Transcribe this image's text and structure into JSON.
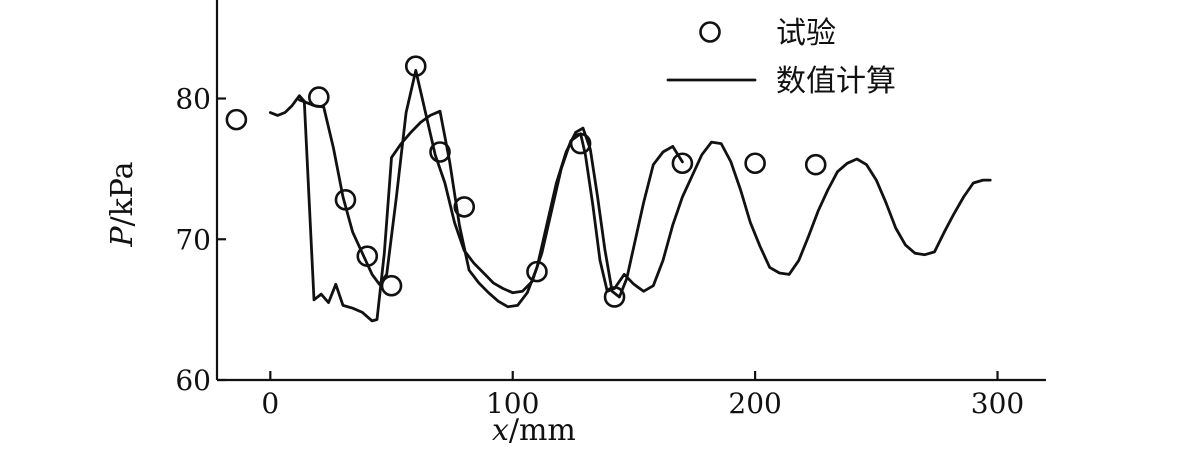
{
  "chart_data": {
    "type": "line",
    "xlabel": {
      "var": "x",
      "unit": "mm"
    },
    "ylabel": {
      "var": "P",
      "unit": "kPa"
    },
    "xlim": [
      -22,
      320
    ],
    "ylim": [
      60,
      87
    ],
    "x_ticks": [
      0,
      100,
      200,
      300
    ],
    "y_ticks": [
      60,
      70,
      80
    ],
    "legend_position": "top-right",
    "legend": [
      {
        "label": "试验",
        "style": "marker-circle"
      },
      {
        "label": "数值计算",
        "style": "line"
      }
    ],
    "series": [
      {
        "name": "试验",
        "style": "marker-circle",
        "points": [
          [
            -14,
            78.5
          ],
          [
            20,
            80.1
          ],
          [
            31,
            72.8
          ],
          [
            40,
            68.8
          ],
          [
            50,
            66.7
          ],
          [
            60,
            82.3
          ],
          [
            70,
            76.2
          ],
          [
            80,
            72.3
          ],
          [
            110,
            67.7
          ],
          [
            128,
            76.8
          ],
          [
            142,
            65.9
          ],
          [
            170,
            75.4
          ],
          [
            200,
            75.4
          ],
          [
            225,
            75.3
          ]
        ]
      },
      {
        "name": "数值计算",
        "style": "line",
        "segments": [
          [
            [
              0,
              79.0
            ],
            [
              3,
              78.8
            ],
            [
              6,
              79.0
            ],
            [
              9,
              79.5
            ],
            [
              12,
              80.2
            ],
            [
              14,
              79.8
            ],
            [
              18,
              65.7
            ],
            [
              21,
              66.1
            ],
            [
              24,
              65.5
            ],
            [
              27,
              66.8
            ],
            [
              30,
              65.3
            ],
            [
              34,
              65.1
            ],
            [
              38,
              64.8
            ],
            [
              42,
              64.2
            ],
            [
              44,
              64.3
            ],
            [
              47,
              69.0
            ],
            [
              50,
              75.8
            ],
            [
              54,
              76.8
            ],
            [
              58,
              77.6
            ],
            [
              62,
              78.3
            ],
            [
              66,
              78.8
            ],
            [
              70,
              79.1
            ],
            [
              74,
              75.5
            ],
            [
              78,
              71.0
            ],
            [
              82,
              67.8
            ],
            [
              86,
              66.9
            ],
            [
              90,
              66.2
            ],
            [
              94,
              65.6
            ],
            [
              98,
              65.2
            ],
            [
              102,
              65.3
            ],
            [
              106,
              66.2
            ],
            [
              110,
              68.0
            ],
            [
              114,
              71.0
            ],
            [
              118,
              74.0
            ],
            [
              122,
              76.2
            ],
            [
              126,
              77.6
            ],
            [
              129,
              77.9
            ],
            [
              132,
              76.4
            ],
            [
              135,
              73.0
            ],
            [
              138,
              69.3
            ],
            [
              141,
              66.3
            ],
            [
              144,
              65.9
            ],
            [
              147,
              67.2
            ],
            [
              150,
              69.5
            ],
            [
              154,
              72.6
            ],
            [
              158,
              75.3
            ],
            [
              162,
              76.2
            ],
            [
              166,
              76.6
            ],
            [
              170,
              75.5
            ]
          ],
          [
            [
              12,
              79.9
            ],
            [
              15,
              79.7
            ],
            [
              18,
              79.5
            ],
            [
              22,
              79.4
            ],
            [
              26,
              76.5
            ],
            [
              30,
              73.0
            ],
            [
              34,
              70.5
            ],
            [
              38,
              69.0
            ],
            [
              42,
              67.5
            ],
            [
              45,
              66.8
            ],
            [
              48,
              67.5
            ],
            [
              52,
              73.0
            ],
            [
              56,
              79.0
            ],
            [
              60,
              82.0
            ],
            [
              64,
              79.0
            ],
            [
              68,
              76.0
            ],
            [
              72,
              74.0
            ],
            [
              76,
              71.2
            ],
            [
              80,
              69.2
            ],
            [
              84,
              68.3
            ],
            [
              88,
              67.6
            ],
            [
              92,
              66.9
            ],
            [
              96,
              66.5
            ],
            [
              100,
              66.2
            ],
            [
              104,
              66.3
            ],
            [
              108,
              67.0
            ],
            [
              112,
              69.0
            ],
            [
              116,
              72.0
            ],
            [
              120,
              75.0
            ],
            [
              124,
              77.0
            ],
            [
              128,
              77.5
            ],
            [
              130,
              76.0
            ],
            [
              133,
              72.5
            ],
            [
              136,
              68.5
            ],
            [
              139,
              66.3
            ],
            [
              142,
              66.5
            ],
            [
              146,
              67.5
            ],
            [
              150,
              66.8
            ],
            [
              154,
              66.3
            ],
            [
              158,
              66.7
            ],
            [
              162,
              68.5
            ],
            [
              166,
              71.0
            ],
            [
              170,
              73.0
            ],
            [
              174,
              74.5
            ],
            [
              178,
              76.0
            ],
            [
              182,
              76.9
            ],
            [
              186,
              76.8
            ],
            [
              190,
              75.5
            ],
            [
              194,
              73.5
            ],
            [
              198,
              71.2
            ],
            [
              202,
              69.5
            ],
            [
              206,
              68.0
            ],
            [
              210,
              67.6
            ],
            [
              214,
              67.5
            ],
            [
              218,
              68.5
            ],
            [
              222,
              70.2
            ],
            [
              226,
              72.0
            ],
            [
              230,
              73.5
            ],
            [
              234,
              74.8
            ],
            [
              238,
              75.4
            ],
            [
              242,
              75.7
            ],
            [
              246,
              75.3
            ],
            [
              250,
              74.2
            ],
            [
              254,
              72.6
            ],
            [
              258,
              70.8
            ],
            [
              262,
              69.6
            ],
            [
              266,
              69.0
            ],
            [
              270,
              68.9
            ],
            [
              274,
              69.1
            ],
            [
              278,
              70.5
            ],
            [
              282,
              71.8
            ],
            [
              286,
              73.0
            ],
            [
              290,
              74.0
            ],
            [
              294,
              74.2
            ],
            [
              297,
              74.2
            ]
          ]
        ]
      }
    ]
  }
}
